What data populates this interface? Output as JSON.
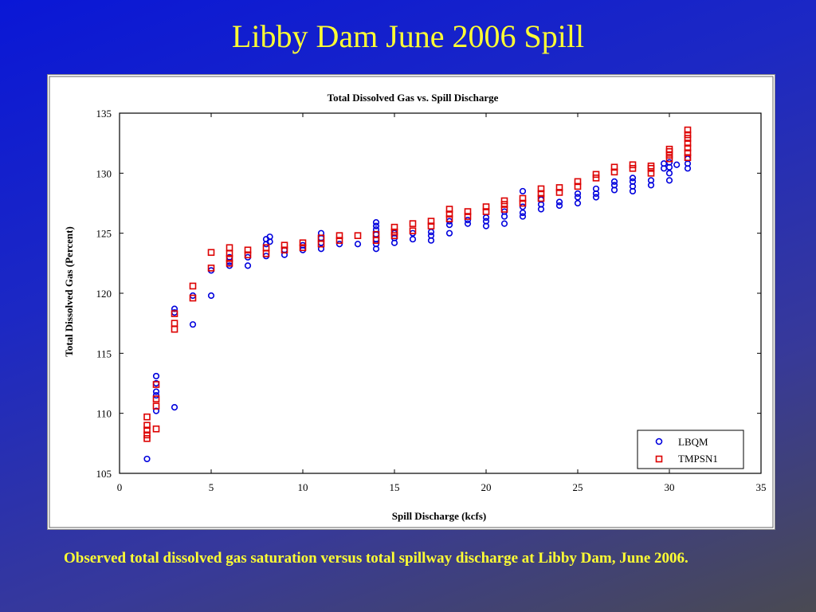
{
  "slide": {
    "title": "Libby Dam June 2006 Spill",
    "caption": "Observed total dissolved gas saturation versus total spillway discharge at Libby Dam, June 2006."
  },
  "chart_data": {
    "type": "scatter",
    "title": "Total Dissolved Gas vs. Spill Discharge",
    "xlabel": "Spill Discharge (kcfs)",
    "ylabel": "Total Dissolved Gas (Percent)",
    "xlim": [
      0,
      35
    ],
    "ylim": [
      105,
      135
    ],
    "xticks": [
      0,
      5,
      10,
      15,
      20,
      25,
      30,
      35
    ],
    "yticks": [
      105,
      110,
      115,
      120,
      125,
      130,
      135
    ],
    "grid": false,
    "legend_position": "bottom-right",
    "series": [
      {
        "name": "LBQM",
        "marker": "circle",
        "color": "#0000dd",
        "points": [
          [
            1.5,
            106.2
          ],
          [
            2,
            110.2
          ],
          [
            2,
            111.5
          ],
          [
            2,
            111.8
          ],
          [
            2,
            112.5
          ],
          [
            2,
            113.1
          ],
          [
            3,
            110.5
          ],
          [
            3,
            118.4
          ],
          [
            3,
            118.7
          ],
          [
            4,
            117.4
          ],
          [
            4,
            119.8
          ],
          [
            5,
            119.8
          ],
          [
            5,
            121.9
          ],
          [
            6,
            122.3
          ],
          [
            6,
            122.6
          ],
          [
            6,
            123.0
          ],
          [
            7,
            122.3
          ],
          [
            7,
            123.0
          ],
          [
            8,
            123.1
          ],
          [
            8,
            124.1
          ],
          [
            8,
            124.5
          ],
          [
            8.2,
            124.3
          ],
          [
            8.2,
            124.7
          ],
          [
            9,
            123.2
          ],
          [
            9,
            123.6
          ],
          [
            10,
            123.6
          ],
          [
            10,
            124.0
          ],
          [
            11,
            123.7
          ],
          [
            11,
            124.2
          ],
          [
            11,
            124.6
          ],
          [
            11,
            125.0
          ],
          [
            12,
            124.1
          ],
          [
            13,
            124.1
          ],
          [
            14,
            123.7
          ],
          [
            14,
            124.1
          ],
          [
            14,
            124.5
          ],
          [
            14,
            124.9
          ],
          [
            14,
            125.3
          ],
          [
            14,
            125.6
          ],
          [
            14,
            125.9
          ],
          [
            15,
            124.2
          ],
          [
            15,
            124.6
          ],
          [
            15,
            125.0
          ],
          [
            16,
            124.5
          ],
          [
            16,
            125.0
          ],
          [
            17,
            124.4
          ],
          [
            17,
            124.8
          ],
          [
            17,
            125.1
          ],
          [
            18,
            125.0
          ],
          [
            18,
            125.7
          ],
          [
            18,
            126.0
          ],
          [
            19,
            125.8
          ],
          [
            19,
            126.1
          ],
          [
            20,
            125.6
          ],
          [
            20,
            126.0
          ],
          [
            20,
            126.3
          ],
          [
            21,
            125.8
          ],
          [
            21,
            126.4
          ],
          [
            21,
            126.8
          ],
          [
            22,
            126.4
          ],
          [
            22,
            126.7
          ],
          [
            22,
            127.2
          ],
          [
            22,
            128.5
          ],
          [
            23,
            127.0
          ],
          [
            23,
            127.4
          ],
          [
            23,
            127.8
          ],
          [
            24,
            127.3
          ],
          [
            24,
            127.6
          ],
          [
            25,
            127.5
          ],
          [
            25,
            128.0
          ],
          [
            25,
            128.3
          ],
          [
            26,
            128.0
          ],
          [
            26,
            128.3
          ],
          [
            26,
            128.7
          ],
          [
            27,
            128.6
          ],
          [
            27,
            129.0
          ],
          [
            27,
            129.3
          ],
          [
            28,
            128.5
          ],
          [
            28,
            128.9
          ],
          [
            28,
            129.3
          ],
          [
            28,
            129.6
          ],
          [
            29,
            129.0
          ],
          [
            29,
            129.4
          ],
          [
            29.7,
            130.4
          ],
          [
            29.7,
            130.8
          ],
          [
            30,
            129.4
          ],
          [
            30,
            130.0
          ],
          [
            30,
            130.5
          ],
          [
            30,
            130.9
          ],
          [
            30.4,
            130.7
          ],
          [
            31,
            130.4
          ],
          [
            31,
            130.8
          ],
          [
            31,
            131.2
          ]
        ]
      },
      {
        "name": "TMPSN1",
        "marker": "square",
        "color": "#dd0000",
        "points": [
          [
            1.5,
            107.9
          ],
          [
            1.5,
            108.2
          ],
          [
            1.5,
            108.6
          ],
          [
            1.5,
            109.0
          ],
          [
            1.5,
            109.7
          ],
          [
            2,
            108.7
          ],
          [
            2,
            110.6
          ],
          [
            2,
            111.2
          ],
          [
            2,
            112.4
          ],
          [
            3,
            117.0
          ],
          [
            3,
            117.5
          ],
          [
            3,
            118.3
          ],
          [
            4,
            119.6
          ],
          [
            4,
            120.6
          ],
          [
            5,
            122.1
          ],
          [
            5,
            123.4
          ],
          [
            6,
            122.5
          ],
          [
            6,
            122.9
          ],
          [
            6,
            123.3
          ],
          [
            6,
            123.8
          ],
          [
            7,
            123.2
          ],
          [
            7,
            123.6
          ],
          [
            8,
            123.3
          ],
          [
            8,
            123.8
          ],
          [
            9,
            123.6
          ],
          [
            9,
            124.0
          ],
          [
            10,
            123.8
          ],
          [
            10,
            124.2
          ],
          [
            11,
            124.1
          ],
          [
            11,
            124.6
          ],
          [
            12,
            124.4
          ],
          [
            12,
            124.8
          ],
          [
            13,
            124.8
          ],
          [
            14,
            124.4
          ],
          [
            14,
            124.9
          ],
          [
            15,
            124.8
          ],
          [
            15,
            125.1
          ],
          [
            15,
            125.5
          ],
          [
            16,
            125.2
          ],
          [
            16,
            125.8
          ],
          [
            17,
            125.6
          ],
          [
            17,
            126.0
          ],
          [
            18,
            126.2
          ],
          [
            18,
            126.6
          ],
          [
            18,
            127.0
          ],
          [
            19,
            126.4
          ],
          [
            19,
            126.8
          ],
          [
            20,
            126.8
          ],
          [
            20,
            127.2
          ],
          [
            21,
            127.0
          ],
          [
            21,
            127.4
          ],
          [
            21,
            127.7
          ],
          [
            22,
            127.5
          ],
          [
            22,
            127.9
          ],
          [
            23,
            127.9
          ],
          [
            23,
            128.3
          ],
          [
            23,
            128.7
          ],
          [
            24,
            128.4
          ],
          [
            24,
            128.8
          ],
          [
            25,
            128.9
          ],
          [
            25,
            129.3
          ],
          [
            26,
            129.6
          ],
          [
            26,
            129.9
          ],
          [
            27,
            130.1
          ],
          [
            27,
            130.5
          ],
          [
            28,
            130.4
          ],
          [
            28,
            130.7
          ],
          [
            29,
            130.0
          ],
          [
            29,
            130.4
          ],
          [
            29,
            130.6
          ],
          [
            30,
            131.2
          ],
          [
            30,
            131.5
          ],
          [
            30,
            131.8
          ],
          [
            30,
            132.0
          ],
          [
            31,
            131.3
          ],
          [
            31,
            131.7
          ],
          [
            31,
            132.1
          ],
          [
            31,
            132.5
          ],
          [
            31,
            132.9
          ],
          [
            31,
            133.2
          ],
          [
            31,
            133.6
          ]
        ]
      }
    ]
  }
}
